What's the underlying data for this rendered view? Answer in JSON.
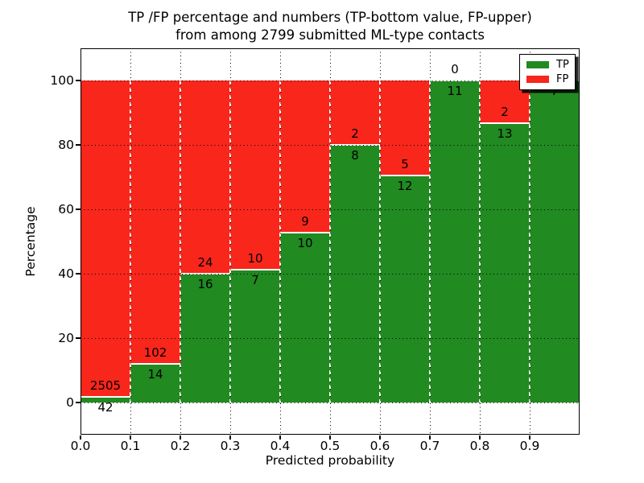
{
  "title": {
    "line1": "TP /FP percentage and numbers (TP-bottom value, FP-upper)",
    "line2": "from among 2799 submitted ML-type contacts"
  },
  "legend": {
    "items": [
      {
        "label": "TP",
        "color": "#218a21"
      },
      {
        "label": "FP",
        "color": "#f8261b"
      }
    ]
  },
  "colors": {
    "tp_green": "#218a21",
    "fp_red": "#f8261b",
    "background": "#ffffff",
    "text": "#000000"
  },
  "chart_data": {
    "type": "bar",
    "stacked": true,
    "normalized_to_percent": true,
    "title": "TP /FP percentage and numbers (TP-bottom value, FP-upper) from among 2799 submitted ML-type contacts",
    "xlabel": "Predicted probability",
    "ylabel": "Percentage",
    "total_contacts": 2799,
    "bins": [
      "0.0-0.1",
      "0.1-0.2",
      "0.2-0.3",
      "0.3-0.4",
      "0.4-0.5",
      "0.5-0.6",
      "0.6-0.7",
      "0.7-0.8",
      "0.8-0.9",
      "0.9-1.0"
    ],
    "series": [
      {
        "name": "TP",
        "color": "#218a21",
        "counts": [
          42,
          14,
          16,
          7,
          10,
          8,
          12,
          11,
          13,
          7
        ]
      },
      {
        "name": "FP",
        "color": "#f8261b",
        "counts": [
          2505,
          102,
          24,
          10,
          9,
          2,
          5,
          0,
          2,
          0
        ]
      }
    ],
    "tp_percent_per_bin": [
      1.65,
      12.07,
      40.0,
      41.18,
      52.63,
      80.0,
      70.59,
      100.0,
      86.67,
      100.0
    ],
    "xticks": [
      "0.0",
      "0.1",
      "0.2",
      "0.3",
      "0.4",
      "0.5",
      "0.6",
      "0.7",
      "0.8",
      "0.9"
    ],
    "yticks": [
      0,
      20,
      40,
      60,
      80,
      100
    ],
    "xlim": [
      0.0,
      1.0
    ],
    "ylim": [
      -10,
      110
    ],
    "grid": true,
    "legend_position": "upper right"
  }
}
